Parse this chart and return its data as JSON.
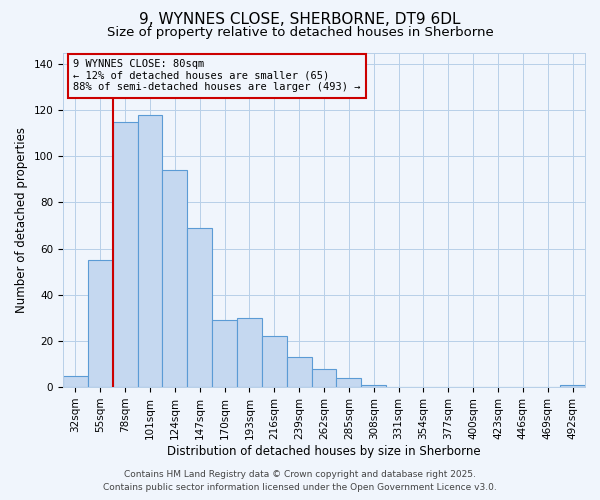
{
  "title": "9, WYNNES CLOSE, SHERBORNE, DT9 6DL",
  "subtitle": "Size of property relative to detached houses in Sherborne",
  "xlabel": "Distribution of detached houses by size in Sherborne",
  "ylabel": "Number of detached properties",
  "categories": [
    "32sqm",
    "55sqm",
    "78sqm",
    "101sqm",
    "124sqm",
    "147sqm",
    "170sqm",
    "193sqm",
    "216sqm",
    "239sqm",
    "262sqm",
    "285sqm",
    "308sqm",
    "331sqm",
    "354sqm",
    "377sqm",
    "400sqm",
    "423sqm",
    "446sqm",
    "469sqm",
    "492sqm"
  ],
  "values": [
    5,
    55,
    115,
    118,
    94,
    69,
    29,
    30,
    22,
    13,
    8,
    4,
    1,
    0,
    0,
    0,
    0,
    0,
    0,
    0,
    1
  ],
  "bar_color": "#c5d8f0",
  "bar_edge_color": "#5b9bd5",
  "bar_edge_width": 0.8,
  "vline_x_index": 2,
  "vline_color": "#cc0000",
  "annotation_title": "9 WYNNES CLOSE: 80sqm",
  "annotation_line1": "← 12% of detached houses are smaller (65)",
  "annotation_line2": "88% of semi-detached houses are larger (493) →",
  "annotation_box_color": "#cc0000",
  "ylim": [
    0,
    145
  ],
  "yticks": [
    0,
    20,
    40,
    60,
    80,
    100,
    120,
    140
  ],
  "footer1": "Contains HM Land Registry data © Crown copyright and database right 2025.",
  "footer2": "Contains public sector information licensed under the Open Government Licence v3.0.",
  "background_color": "#f0f5fc",
  "grid_color": "#b8cfe8",
  "title_fontsize": 11,
  "subtitle_fontsize": 9.5,
  "axis_label_fontsize": 8.5,
  "tick_fontsize": 7.5,
  "footer_fontsize": 6.5,
  "annotation_fontsize": 7.5
}
